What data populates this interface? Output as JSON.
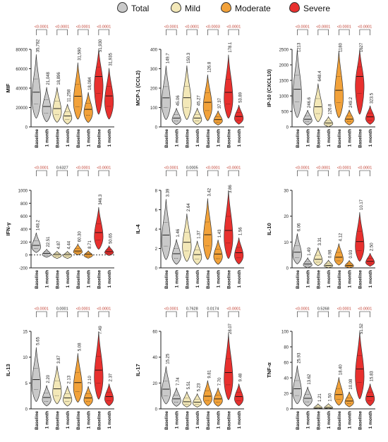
{
  "legend": [
    {
      "label": "Total",
      "color": "#c9c9c9"
    },
    {
      "label": "Mild",
      "color": "#f3e8b8"
    },
    {
      "label": "Moderate",
      "color": "#f2a23a"
    },
    {
      "label": "Severe",
      "color": "#e8302e"
    }
  ],
  "colors": {
    "pvalue": "#c0392b",
    "outline": "#333333"
  },
  "chart_data": [
    {
      "type": "violin",
      "ylabel": "MIF",
      "ylim": [
        0,
        80000
      ],
      "yticks": [
        0,
        20000,
        40000,
        60000,
        80000
      ],
      "tick_labels": [
        "0",
        "20000",
        "40000",
        "60000",
        "80000"
      ],
      "categories": [
        "Baseline",
        "1 month",
        "Baseline",
        "1 month",
        "Baseline",
        "1 month",
        "Baseline",
        "1 month"
      ],
      "groups": [
        "Total",
        "Total",
        "Mild",
        "Mild",
        "Moderate",
        "Moderate",
        "Severe",
        "Severe"
      ],
      "values": [
        35782,
        21048,
        18896,
        11258,
        31590,
        18084,
        51930,
        31935
      ],
      "value_labels": [
        "35,782",
        "21,048",
        "18,896",
        "11,258",
        "31,590",
        "18,084",
        "51,930",
        "31,935"
      ],
      "pvalues": [
        "<0.0001",
        "<0.0001",
        "<0.0001",
        "<0.0001"
      ]
    },
    {
      "type": "violin",
      "ylabel": "MCP-1 (CCL2)",
      "ylim": [
        0,
        400
      ],
      "yticks": [
        0,
        100,
        200,
        300,
        400
      ],
      "tick_labels": [
        "0",
        "100",
        "200",
        "300",
        "400"
      ],
      "categories": [
        "Baseline",
        "1 month",
        "Baseline",
        "1 month",
        "Baseline",
        "1 month",
        "Baseline",
        "1 month"
      ],
      "groups": [
        "Total",
        "Total",
        "Mild",
        "Mild",
        "Moderate",
        "Moderate",
        "Severe",
        "Severe"
      ],
      "values": [
        149.7,
        45.06,
        150.3,
        45.27,
        126.8,
        37.37,
        178.1,
        53.89
      ],
      "value_labels": [
        "149.7",
        "45.06",
        "150.3",
        "45.27",
        "126.8",
        "37.37",
        "178.1",
        "53.89"
      ],
      "pvalues": [
        "<0.0001",
        "<0.0001",
        "<0.0003",
        "<0.0001"
      ]
    },
    {
      "type": "violin",
      "ylabel": "IP-10 (CXCL10)",
      "ylim": [
        0,
        2500
      ],
      "yticks": [
        0,
        500,
        1000,
        1500,
        2000,
        2500
      ],
      "tick_labels": [
        "0",
        "500",
        "1000",
        "1500",
        "2000",
        "2500"
      ],
      "categories": [
        "Baseline",
        "1 month",
        "Baseline",
        "1 month",
        "Baseline",
        "1 month",
        "Baseline",
        "1 month"
      ],
      "groups": [
        "Total",
        "Total",
        "Mild",
        "Mild",
        "Moderate",
        "Moderate",
        "Severe",
        "Severe"
      ],
      "values": [
        1213,
        246.6,
        648.4,
        126.8,
        1180,
        249.2,
        1627,
        323.5
      ],
      "value_labels": [
        "1213",
        "246.6",
        "648.4",
        "126.8",
        "1180",
        "249.2",
        "1627",
        "323.5"
      ],
      "pvalues": [
        "<0.0001",
        "<0.0001",
        "<0.0001",
        "<0.0001"
      ]
    },
    {
      "type": "violin",
      "ylabel": "IFN-γ",
      "ylim": [
        -200,
        1000
      ],
      "yticks": [
        -200,
        0,
        200,
        400,
        600,
        800,
        1000
      ],
      "tick_labels": [
        "-200",
        "0",
        "200",
        "400",
        "600",
        "800",
        "1000"
      ],
      "categories": [
        "Baseline",
        "1 month",
        "Baseline",
        "1 month",
        "Baseline",
        "1 month",
        "Baseline",
        "1 month"
      ],
      "groups": [
        "Total",
        "Total",
        "Mild",
        "Mild",
        "Moderate",
        "Moderate",
        "Severe",
        "Severe"
      ],
      "values": [
        148.2,
        22.51,
        4.87,
        4.44,
        60.3,
        8.71,
        346.3,
        50.65
      ],
      "value_labels": [
        "148.2",
        "22.51",
        "4.87",
        "4.44",
        "60.30",
        "8.71",
        "346.3",
        "50.65"
      ],
      "pvalues": [
        "<0.0001",
        "0.6327",
        "<0.0001",
        "<0.0001"
      ]
    },
    {
      "type": "violin",
      "ylabel": "IL-4",
      "ylim": [
        0,
        8
      ],
      "yticks": [
        0,
        2,
        4,
        6,
        8
      ],
      "tick_labels": [
        "0",
        "2",
        "4",
        "6",
        "8"
      ],
      "categories": [
        "Baseline",
        "1 month",
        "Baseline",
        "1 month",
        "Baseline",
        "1 month",
        "Baseline",
        "1 month"
      ],
      "groups": [
        "Total",
        "Total",
        "Mild",
        "Mild",
        "Moderate",
        "Moderate",
        "Severe",
        "Severe"
      ],
      "values": [
        3.39,
        1.46,
        2.64,
        1.37,
        3.42,
        1.43,
        3.86,
        1.56
      ],
      "value_labels": [
        "3.39",
        "1.46",
        "2.64",
        "1.37",
        "3.42",
        "1.43",
        "3.86",
        "1.56"
      ],
      "pvalues": [
        "<0.0001",
        "0.0005",
        "<0.0001",
        "<0.0001"
      ]
    },
    {
      "type": "violin",
      "ylabel": "IL-10",
      "ylim": [
        0,
        30
      ],
      "yticks": [
        0,
        10,
        20,
        30
      ],
      "tick_labels": [
        "0",
        "10",
        "20",
        "30"
      ],
      "categories": [
        "Baseline",
        "1 month",
        "Baseline",
        "1 month",
        "Baseline",
        "1 month",
        "Baseline",
        "1 month"
      ],
      "groups": [
        "Total",
        "Total",
        "Mild",
        "Mild",
        "Moderate",
        "Moderate",
        "Severe",
        "Severe"
      ],
      "values": [
        6.06,
        1.49,
        3.31,
        0.98,
        4.12,
        0.93,
        10.17,
        2.5
      ],
      "value_labels": [
        "6.06",
        "1.49",
        "3.31",
        "0.98",
        "4.12",
        "0.93",
        "10.17",
        "2.50"
      ],
      "pvalues": [
        "<0.0001",
        "<0.0001",
        "<0.0001",
        "<0.0001"
      ]
    },
    {
      "type": "violin",
      "ylabel": "IL-13",
      "ylim": [
        0,
        15
      ],
      "yticks": [
        0,
        5,
        10,
        15
      ],
      "tick_labels": [
        "0",
        "5",
        "10",
        "15"
      ],
      "categories": [
        "Baseline",
        "1 month",
        "Baseline",
        "1 month",
        "Baseline",
        "1 month",
        "Baseline",
        "1 month"
      ],
      "groups": [
        "Total",
        "Total",
        "Mild",
        "Mild",
        "Moderate",
        "Moderate",
        "Severe",
        "Severe"
      ],
      "values": [
        5.65,
        2.2,
        3.87,
        2.13,
        5.08,
        2.1,
        7.49,
        2.37
      ],
      "value_labels": [
        "5.65",
        "2.20",
        "3.87",
        "2.13",
        "5.08",
        "2.10",
        "7.49",
        "2.37"
      ],
      "pvalues": [
        "<0.0001",
        "0.0001",
        "<0.0001",
        "<0.0001"
      ]
    },
    {
      "type": "violin",
      "ylabel": "IL-17",
      "ylim": [
        0,
        60
      ],
      "yticks": [
        0,
        20,
        40,
        60
      ],
      "tick_labels": [
        "0",
        "20",
        "40",
        "60"
      ],
      "categories": [
        "Baseline",
        "1 month",
        "Baseline",
        "1 month",
        "Baseline",
        "1 month",
        "Baseline",
        "1 month"
      ],
      "groups": [
        "Total",
        "Total",
        "Mild",
        "Mild",
        "Moderate",
        "Moderate",
        "Severe",
        "Severe"
      ],
      "values": [
        15.25,
        7.74,
        5.51,
        5.23,
        9.81,
        7.7,
        28.07,
        9.48
      ],
      "value_labels": [
        "15.25",
        "7.74",
        "5.51",
        "5.23",
        "9.81",
        "7.70",
        "28.07",
        "9.48"
      ],
      "pvalues": [
        "<0.0001",
        "0.7628",
        "0.0174",
        "<0.0001"
      ]
    },
    {
      "type": "violin",
      "ylabel": "TNF-α",
      "ylim": [
        0,
        100
      ],
      "yticks": [
        0,
        20,
        40,
        60,
        80,
        100
      ],
      "tick_labels": [
        "0",
        "20",
        "40",
        "60",
        "80",
        "100"
      ],
      "categories": [
        "Baseline",
        "1 month",
        "Baseline",
        "1 month",
        "Baseline",
        "1 month",
        "Baseline",
        "1 month"
      ],
      "groups": [
        "Total",
        "Total",
        "Mild",
        "Mild",
        "Moderate",
        "Moderate",
        "Severe",
        "Severe"
      ],
      "values": [
        25.93,
        13.62,
        1.21,
        1.5,
        18.4,
        10.08,
        51.52,
        15.83
      ],
      "value_labels": [
        "25.93",
        "13.62",
        "1.21",
        "1.50",
        "18.40",
        "10.08",
        "51.52",
        "15.83"
      ],
      "pvalues": [
        "<0.0001",
        "0.5268",
        "<0.0001",
        "<0.0001"
      ]
    }
  ]
}
